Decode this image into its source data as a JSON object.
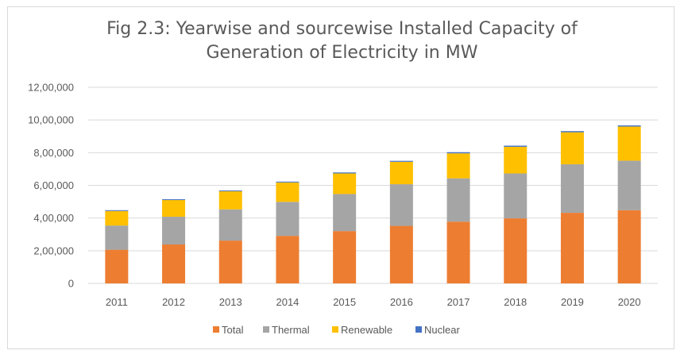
{
  "chart_data": {
    "type": "bar",
    "stacked": true,
    "title_line1": "Fig 2.3: Yearwise and sourcewise Installed Capacity of",
    "title_line2": "Generation of Electricity in MW",
    "categories": [
      "2011",
      "2012",
      "2013",
      "2014",
      "2015",
      "2016",
      "2017",
      "2018",
      "2019",
      "2020"
    ],
    "series": [
      {
        "name": "Total",
        "color": "#ED7D31",
        "values": [
          206000,
          238000,
          262000,
          291000,
          320000,
          352000,
          378000,
          398000,
          432000,
          448000
        ]
      },
      {
        "name": "Thermal",
        "color": "#A5A5A5",
        "values": [
          148000,
          170000,
          191000,
          208000,
          227000,
          255000,
          265000,
          275000,
          297000,
          303000
        ]
      },
      {
        "name": "Renewable",
        "color": "#FFC000",
        "values": [
          89000,
          102000,
          111000,
          119000,
          126000,
          137000,
          153000,
          163000,
          196000,
          209000
        ]
      },
      {
        "name": "Nuclear",
        "color": "#4472C4",
        "values": [
          5000,
          5000,
          5000,
          5000,
          6000,
          6000,
          7000,
          7000,
          7000,
          7000
        ]
      }
    ],
    "ylim": [
      0,
      1200000
    ],
    "yticks": [
      0,
      200000,
      400000,
      600000,
      800000,
      1000000,
      1200000
    ],
    "ytick_labels": [
      "0",
      "2,00,000",
      "4,00,000",
      "6,00,000",
      "8,00,000",
      "10,00,000",
      "12,00,000"
    ],
    "grid": true,
    "legend_position": "bottom"
  }
}
